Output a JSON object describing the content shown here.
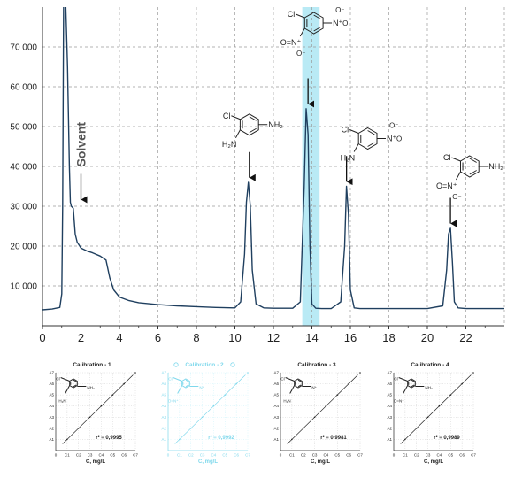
{
  "chart_data": {
    "type": "line",
    "title": "",
    "xlabel": "",
    "ylabel": "",
    "xlim": [
      0,
      24
    ],
    "ylim": [
      0,
      80000
    ],
    "x_ticks": [
      0,
      2,
      4,
      6,
      8,
      10,
      12,
      14,
      16,
      18,
      20,
      22
    ],
    "x_tick_labels": [
      "0",
      "2",
      "4",
      "6",
      "8",
      "10",
      "12",
      "14",
      "16",
      "18",
      "20",
      "22"
    ],
    "y_ticks": [
      10000,
      20000,
      30000,
      40000,
      50000,
      60000,
      70000
    ],
    "y_tick_labels": [
      "10 000",
      "20 000",
      "30 000",
      "40 000",
      "50 000",
      "60 000",
      "70 000"
    ],
    "grid": true,
    "line_color": "#1f3f5f",
    "highlight_color": "#7fd8ec",
    "highlight_band": [
      13.5,
      14.4
    ],
    "series": [
      {
        "x": [
          0,
          0.5,
          0.9,
          1.0,
          1.05,
          1.1,
          1.2,
          1.3,
          1.4,
          1.45,
          1.5,
          1.6,
          1.7,
          1.8,
          2.0,
          2.3,
          2.6,
          3.0,
          3.3,
          3.5,
          3.7,
          4.0,
          4.5,
          5.0,
          6.0,
          7.0,
          8.0,
          9.0,
          10.0,
          10.3,
          10.5,
          10.6,
          10.7,
          10.8,
          10.9,
          11.1,
          11.5,
          12.0,
          13.0,
          13.4,
          13.6,
          13.7,
          13.8,
          13.9,
          14.0,
          14.2,
          14.5,
          15.0,
          15.5,
          15.7,
          15.8,
          15.9,
          16.0,
          16.2,
          16.5,
          17.0,
          18.0,
          19.0,
          20.0,
          20.8,
          21.0,
          21.1,
          21.2,
          21.3,
          21.4,
          21.6,
          22.0,
          23.0,
          24.0
        ],
        "y": [
          4000,
          4200,
          4600,
          8000,
          30000,
          82000,
          82000,
          65000,
          40000,
          31000,
          30000,
          29500,
          23000,
          21000,
          19500,
          18800,
          18300,
          17500,
          16500,
          12000,
          9000,
          7200,
          6300,
          5800,
          5300,
          5000,
          4800,
          4600,
          4500,
          6000,
          18000,
          31000,
          36000,
          30000,
          14000,
          5500,
          4500,
          4400,
          4400,
          6000,
          35000,
          54500,
          48000,
          20000,
          5500,
          4400,
          4300,
          4300,
          6000,
          20000,
          35000,
          28000,
          9000,
          4500,
          4300,
          4300,
          4300,
          4300,
          4300,
          5000,
          14000,
          23000,
          24500,
          16000,
          6000,
          4500,
          4300,
          4300,
          4300
        ]
      }
    ],
    "annotations": [
      {
        "text": "Solvent",
        "x": 2.0,
        "y": 31000
      },
      {
        "text": "",
        "x": 10.75,
        "y": 36500
      },
      {
        "text": "",
        "x": 13.8,
        "y": 55000
      },
      {
        "text": "",
        "x": 15.8,
        "y": 35500
      },
      {
        "text": "",
        "x": 21.2,
        "y": 25000
      }
    ]
  },
  "molecules": [
    {
      "x": 10.75,
      "y": 50500,
      "subs": {
        "top_left": "Cl",
        "bottom_left": "H₂N",
        "right": "NH₂"
      }
    },
    {
      "x": 14.1,
      "y": 76000,
      "subs": {
        "top_left": "Cl",
        "bottom_left": "O=N⁺",
        "bottom_left_minus": "O⁻",
        "right": "N⁺",
        "right_plus": "O⁻",
        "right_minus": "O"
      }
    },
    {
      "x": 16.9,
      "y": 47000,
      "subs": {
        "top_left": "Cl",
        "bottom_left": "H₂N",
        "right": "N⁺",
        "right_plus": "O⁻",
        "right_minus": "O"
      }
    },
    {
      "x": 22.2,
      "y": 40000,
      "subs": {
        "top_left": "Cl",
        "bottom_left": "O=N⁺",
        "bottom_left_minus": "O⁻",
        "right": "NH₂"
      }
    }
  ],
  "calibrations": [
    {
      "title": "Calibration - 1",
      "r2": "r² = 0,9995",
      "xlabel": "C, mg/L",
      "highlight": false,
      "mol": {
        "top_left": "Cl",
        "bottom_left": "H₂N",
        "right": "NH₂"
      },
      "points": [
        [
          1,
          1
        ],
        [
          2,
          2
        ],
        [
          3,
          3
        ],
        [
          4,
          4
        ],
        [
          5,
          5
        ],
        [
          6,
          6
        ],
        [
          7,
          7
        ]
      ]
    },
    {
      "title": "Calibration - 2",
      "r2": "r² = 0,9992",
      "xlabel": "C, mg/L",
      "highlight": true,
      "mol": {
        "top_left": "Cl",
        "bottom_left": "O=N⁺",
        "right": "N⁺"
      },
      "points": [
        [
          1,
          1
        ],
        [
          2,
          2
        ],
        [
          3,
          3
        ],
        [
          4,
          4
        ],
        [
          5,
          5
        ],
        [
          6,
          6
        ],
        [
          7,
          7
        ]
      ]
    },
    {
      "title": "Calibration - 3",
      "r2": "r² = 0,9981",
      "xlabel": "C, mg/L",
      "highlight": false,
      "mol": {
        "top_left": "Cl",
        "bottom_left": "H₂N",
        "right": "N⁺"
      },
      "points": [
        [
          1,
          1
        ],
        [
          2,
          2
        ],
        [
          3,
          3
        ],
        [
          4,
          4
        ],
        [
          5,
          5
        ],
        [
          6,
          6
        ],
        [
          7,
          7
        ]
      ]
    },
    {
      "title": "Calibration - 4",
      "r2": "r² = 0,9989",
      "xlabel": "C, mg/L",
      "highlight": false,
      "mol": {
        "top_left": "Cl",
        "bottom_left": "O=N⁺",
        "right": "NH₂"
      },
      "points": [
        [
          1,
          1
        ],
        [
          2,
          2
        ],
        [
          3,
          3
        ],
        [
          4,
          4
        ],
        [
          5,
          5
        ],
        [
          6,
          6
        ],
        [
          7,
          7
        ]
      ]
    }
  ],
  "calibration_axes": {
    "x_ticks": [
      "0",
      "C1",
      "C2",
      "C3",
      "C4",
      "C5",
      "C6",
      "C7"
    ],
    "y_ticks": [
      "A1",
      "A2",
      "A3",
      "A4",
      "A5",
      "A6",
      "A7"
    ]
  }
}
